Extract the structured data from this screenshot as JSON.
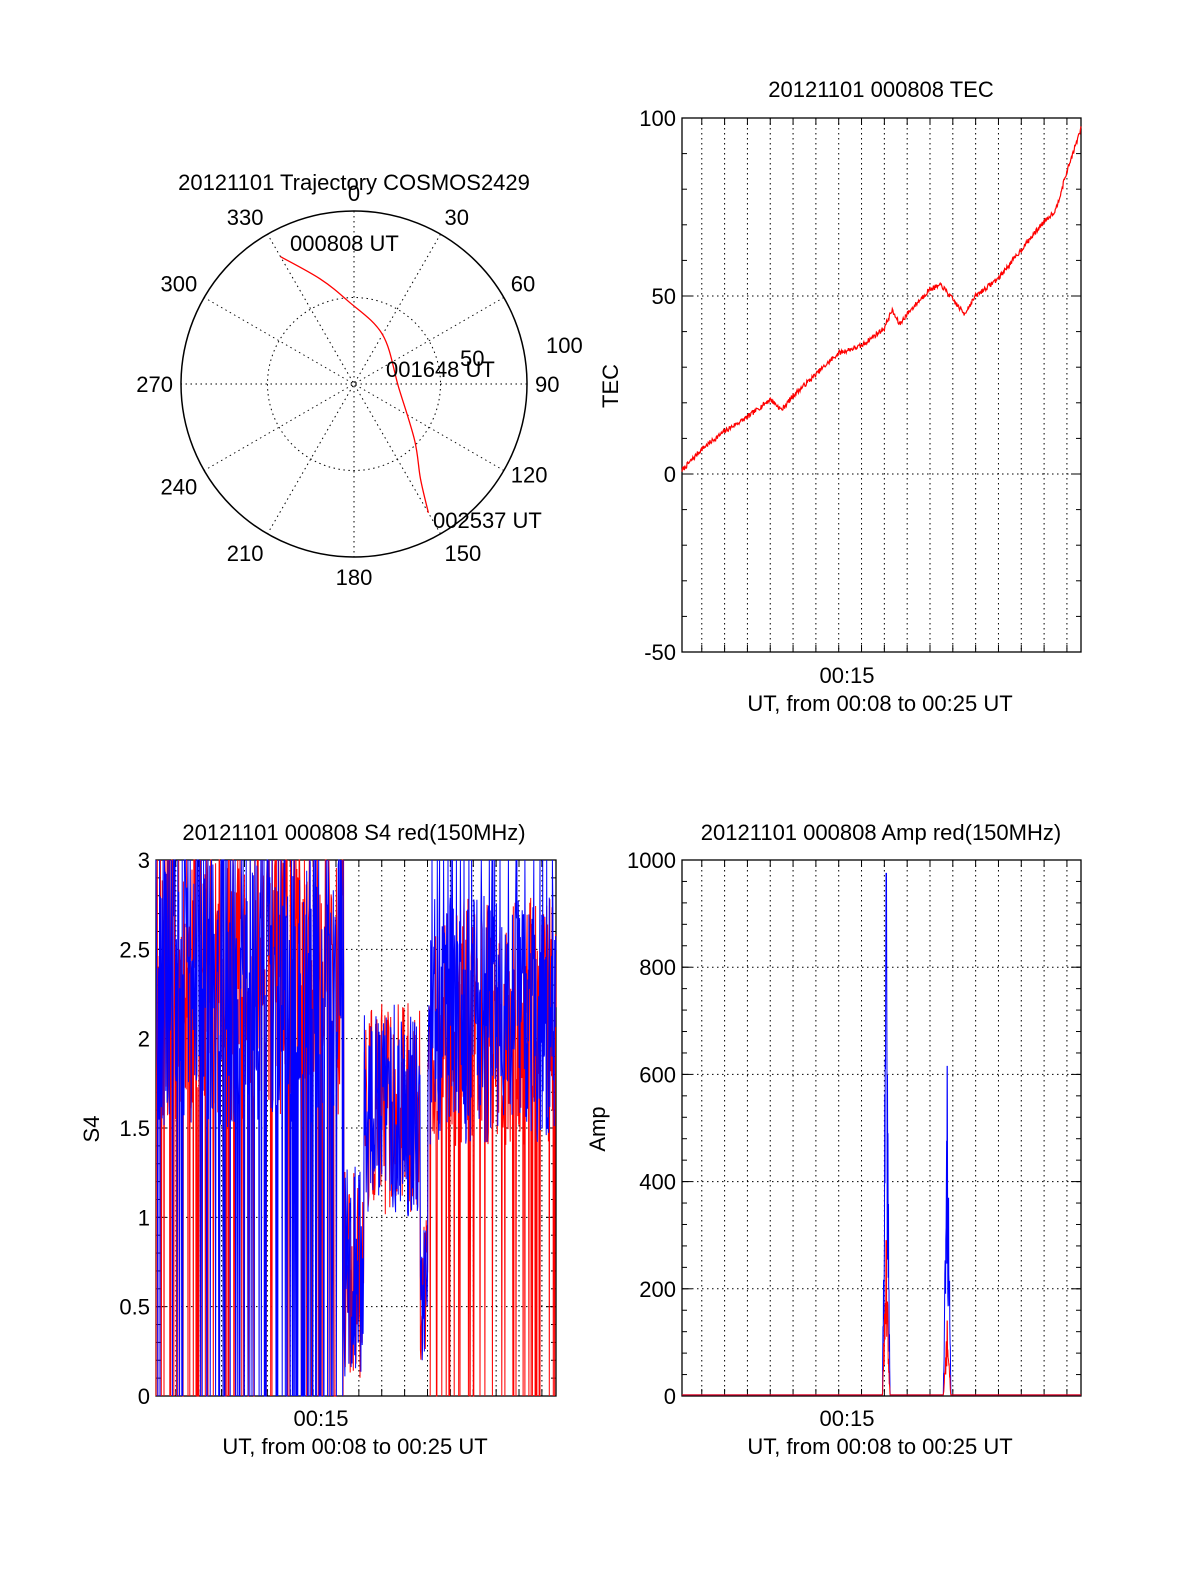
{
  "chart_data": [
    {
      "type": "polar",
      "title": "20121101 Trajectory COSMOS2429",
      "angle_labels": [
        "0",
        "30",
        "60",
        "90",
        "120",
        "150",
        "180",
        "210",
        "240",
        "270",
        "300",
        "330"
      ],
      "radius_labels": [
        "50",
        "100"
      ],
      "rlim": [
        0,
        100
      ],
      "grid": true,
      "series": [
        {
          "color": "#ff0000",
          "points": [
            {
              "az": 330,
              "r": 85
            },
            {
              "az": 342,
              "r": 64
            },
            {
              "az": 356,
              "r": 48
            },
            {
              "az": 30,
              "r": 33
            },
            {
              "az": 95,
              "r": 26
            },
            {
              "az": 133,
              "r": 48
            },
            {
              "az": 145,
              "r": 67
            },
            {
              "az": 150,
              "r": 86
            }
          ]
        }
      ],
      "annotations": [
        {
          "text": "000808 UT",
          "az": 330,
          "r": 85
        },
        {
          "text": "001648 UT",
          "az": 95,
          "r": 26
        },
        {
          "text": "002537 UT",
          "az": 150,
          "r": 86
        }
      ]
    },
    {
      "type": "line",
      "title": "20121101 000808 TEC",
      "xlabel": "UT, from 00:08 to 00:25 UT",
      "ylabel": "TEC",
      "xlim": [
        "00:08:08",
        "00:25:37"
      ],
      "x_ticks": [
        "00:15"
      ],
      "ylim": [
        -50,
        100
      ],
      "y_ticks": [
        "-50",
        "0",
        "50",
        "100"
      ],
      "grid": true,
      "series": [
        {
          "color": "#ff0000",
          "x": [
            "00:08:08",
            "00:09:00",
            "00:10:00",
            "00:11:00",
            "00:12:00",
            "00:12:30",
            "00:13:00",
            "00:14:00",
            "00:15:00",
            "00:16:00",
            "00:17:00",
            "00:17:20",
            "00:17:40",
            "00:18:00",
            "00:19:00",
            "00:19:30",
            "00:20:00",
            "00:20:30",
            "00:21:00",
            "00:22:00",
            "00:23:00",
            "00:24:00",
            "00:24:30",
            "00:25:00",
            "00:25:37"
          ],
          "values": [
            1,
            7,
            12,
            16,
            21,
            18,
            22,
            28,
            34,
            36,
            41,
            46,
            42,
            45,
            52,
            53,
            49,
            45,
            50,
            55,
            63,
            71,
            74,
            85,
            97
          ]
        }
      ]
    },
    {
      "type": "line",
      "title": "20121101 000808 S4 red(150MHz)",
      "xlabel": "UT, from 00:08 to 00:25 UT",
      "ylabel": "S4",
      "xlim": [
        "00:08:08",
        "00:25:37"
      ],
      "x_ticks": [
        "00:15"
      ],
      "ylim": [
        0,
        3
      ],
      "y_ticks": [
        "0",
        "0.5",
        "1",
        "1.5",
        "2",
        "2.5",
        "3"
      ],
      "grid": true,
      "series": [
        {
          "color": "#ff0000",
          "noise": "s4"
        },
        {
          "color": "#0000ff",
          "noise": "s4"
        }
      ]
    },
    {
      "type": "line",
      "title": "20121101 000808 Amp red(150MHz)",
      "xlabel": "UT, from 00:08 to 00:25 UT",
      "ylabel": "Amp",
      "xlim": [
        "00:08:08",
        "00:25:37"
      ],
      "x_ticks": [
        "00:15"
      ],
      "ylim": [
        0,
        1000
      ],
      "y_ticks": [
        "0",
        "200",
        "400",
        "600",
        "800",
        "1000"
      ],
      "grid": true,
      "series": [
        {
          "color": "#0000ff",
          "peaks": [
            {
              "x": "00:17:05",
              "value": 975
            },
            {
              "x": "00:19:45",
              "value": 615
            }
          ]
        },
        {
          "color": "#ff0000",
          "peaks": [
            {
              "x": "00:17:05",
              "value": 290
            },
            {
              "x": "00:19:45",
              "value": 140
            }
          ]
        }
      ]
    }
  ]
}
